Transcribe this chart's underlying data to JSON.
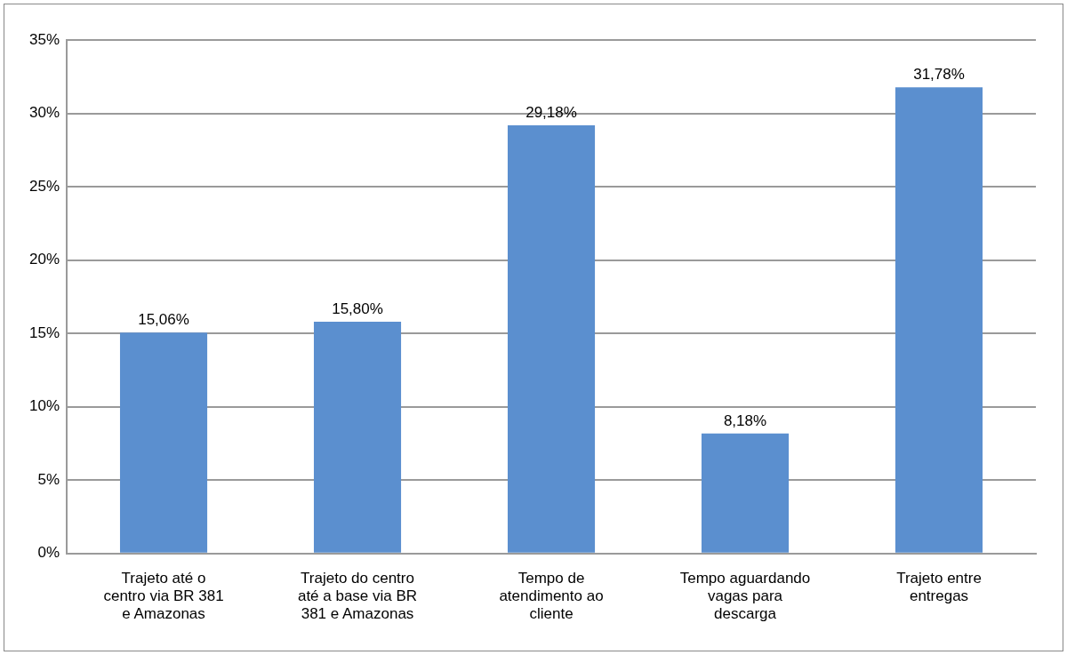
{
  "chart_data": {
    "type": "bar",
    "categories": [
      "Trajeto até o centro via BR 381 e Amazonas",
      "Trajeto do centro até a base via BR 381 e Amazonas",
      "Tempo de atendimento ao cliente",
      "Tempo aguardando vagas para descarga",
      "Trajeto entre entregas"
    ],
    "values": [
      15.06,
      15.8,
      29.18,
      8.18,
      31.78
    ],
    "value_labels": [
      "15,06%",
      "15,80%",
      "29,18%",
      "8,18%",
      "31,78%"
    ],
    "color": "#5b8fcf",
    "ylim": [
      0,
      35
    ],
    "yticks": [
      {
        "value": 0,
        "label": "0%"
      },
      {
        "value": 5,
        "label": "5%"
      },
      {
        "value": 10,
        "label": "10%"
      },
      {
        "value": 15,
        "label": "15%"
      },
      {
        "value": 20,
        "label": "20%"
      },
      {
        "value": 25,
        "label": "25%"
      },
      {
        "value": 30,
        "label": "30%"
      },
      {
        "value": 35,
        "label": "35%"
      }
    ],
    "grid": "y"
  }
}
